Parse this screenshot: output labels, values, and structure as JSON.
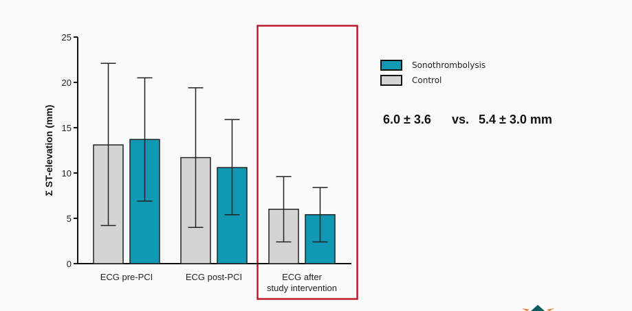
{
  "chart_data": {
    "type": "bar",
    "title": "",
    "ylabel": "Σ ST-elevation (mm)",
    "xlabel": "",
    "ylim": [
      0,
      25
    ],
    "yticks": [
      0,
      5,
      10,
      15,
      20,
      25
    ],
    "categories": [
      "ECG pre-PCI",
      "ECG post-PCI",
      "ECG after study intervention"
    ],
    "category_lines": [
      [
        "ECG pre-PCI"
      ],
      [
        "ECG post-PCI"
      ],
      [
        "ECG after",
        "study intervention"
      ]
    ],
    "series": [
      {
        "name": "Control",
        "color": "#d4d4d4",
        "values": [
          13.1,
          11.7,
          6.0
        ],
        "err_high": [
          22.1,
          19.4,
          9.6
        ],
        "err_low": [
          4.2,
          4.0,
          2.4
        ]
      },
      {
        "name": "Sonothrombolysis",
        "color": "#1199b3",
        "values": [
          13.7,
          10.6,
          5.4
        ],
        "err_high": [
          20.5,
          15.9,
          8.4
        ],
        "err_low": [
          6.9,
          5.4,
          2.4
        ]
      }
    ],
    "legend": {
      "position": "right",
      "entries": [
        "Sonothrombolysis",
        "Control"
      ]
    },
    "highlight": {
      "category": "ECG after study intervention",
      "color": "#c0182b"
    }
  },
  "stat": {
    "control": "6.0 ± 3.6",
    "vs": "vs.",
    "sono": "5.4 ± 3.0 mm"
  }
}
